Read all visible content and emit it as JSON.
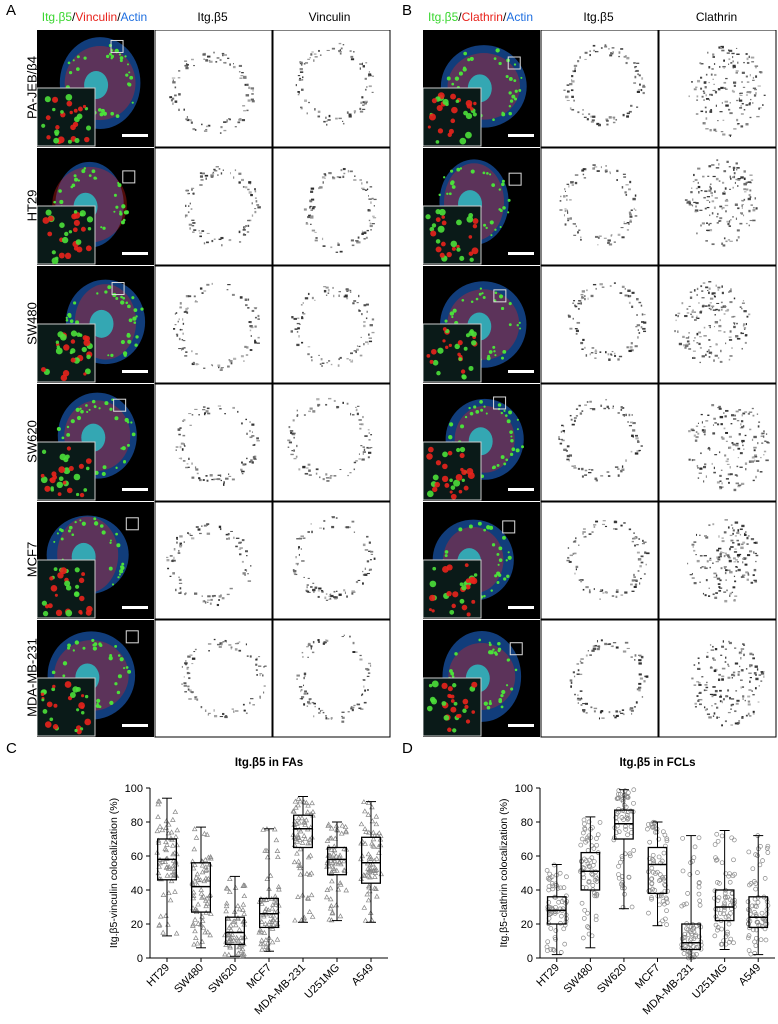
{
  "panels": {
    "A": "A",
    "B": "B",
    "C": "C",
    "D": "D"
  },
  "headers": {
    "A": {
      "merge": {
        "g": "Itg.β5",
        "r": "Vinculin",
        "b": "Actin"
      },
      "c2": "Itg.β5",
      "c3": "Vinculin"
    },
    "B": {
      "merge": {
        "g": "Itg.β5",
        "r": "Clathrin",
        "b": "Actin"
      },
      "c2": "Itg.β5",
      "c3": "Clathrin"
    }
  },
  "rows": [
    "PA-JEB/β4",
    "HT29",
    "SW480",
    "SW620",
    "MCF7",
    "MDA-MB-231"
  ],
  "chart_data": [
    {
      "type": "box",
      "title": "Itg.β5 in FAs",
      "ylabel": "Itg.β5-vinculin colocalization (%)",
      "ylim": [
        0,
        100
      ],
      "yticks": [
        0,
        20,
        40,
        60,
        80,
        100
      ],
      "categories": [
        "HT29",
        "SW480",
        "SW620",
        "MCF7",
        "MDA-MB-231",
        "U251MG",
        "A549"
      ],
      "marker": "triangle",
      "boxes": [
        {
          "min": 13,
          "q1": 46,
          "median": 58,
          "q3": 70,
          "max": 94
        },
        {
          "min": 6,
          "q1": 27,
          "median": 42,
          "q3": 56,
          "max": 77
        },
        {
          "min": 1,
          "q1": 8,
          "median": 15,
          "q3": 24,
          "max": 48
        },
        {
          "min": 4,
          "q1": 18,
          "median": 26,
          "q3": 35,
          "max": 76
        },
        {
          "min": 21,
          "q1": 65,
          "median": 76,
          "q3": 84,
          "max": 95
        },
        {
          "min": 22,
          "q1": 49,
          "median": 58,
          "q3": 65,
          "max": 80
        },
        {
          "min": 21,
          "q1": 44,
          "median": 56,
          "q3": 71,
          "max": 92
        }
      ]
    },
    {
      "type": "box",
      "title": "Itg.β5 in FCLs",
      "ylabel": "Itg.β5-clathrin colocalization (%)",
      "ylim": [
        0,
        100
      ],
      "yticks": [
        0,
        20,
        40,
        60,
        80,
        100
      ],
      "categories": [
        "HT29",
        "SW480",
        "SW620",
        "MCF7",
        "MDA-MB-231",
        "U251MG",
        "A549"
      ],
      "marker": "circle",
      "boxes": [
        {
          "min": 2,
          "q1": 20,
          "median": 28,
          "q3": 36,
          "max": 55
        },
        {
          "min": 6,
          "q1": 40,
          "median": 51,
          "q3": 62,
          "max": 83
        },
        {
          "min": 29,
          "q1": 70,
          "median": 79,
          "q3": 87,
          "max": 99
        },
        {
          "min": 19,
          "q1": 38,
          "median": 55,
          "q3": 65,
          "max": 80
        },
        {
          "min": 0,
          "q1": 5,
          "median": 9,
          "q3": 20,
          "max": 72
        },
        {
          "min": 5,
          "q1": 22,
          "median": 30,
          "q3": 40,
          "max": 75
        },
        {
          "min": 2,
          "q1": 18,
          "median": 24,
          "q3": 36,
          "max": 72
        }
      ]
    }
  ]
}
